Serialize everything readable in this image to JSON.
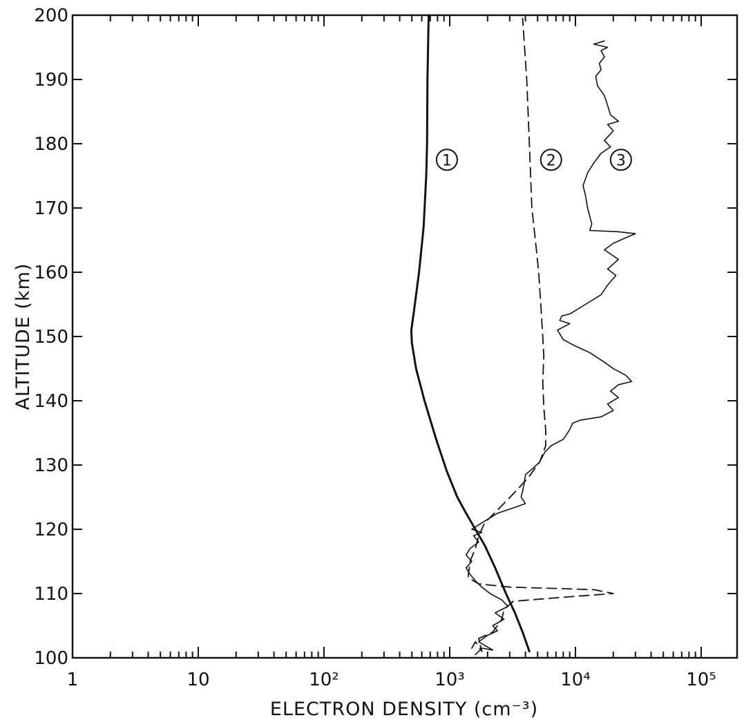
{
  "chart_data": {
    "type": "line",
    "xlabel": "ELECTRON DENSITY (cm⁻³)",
    "ylabel": "ALTITUDE (km)",
    "x_scale": "log",
    "xlim": [
      1,
      180000
    ],
    "ylim": [
      100,
      200
    ],
    "x_ticks": [
      {
        "value": 1,
        "label": "1"
      },
      {
        "value": 10,
        "label": "10"
      },
      {
        "value": 100,
        "label": "10²"
      },
      {
        "value": 1000,
        "label": "10³"
      },
      {
        "value": 10000,
        "label": "10⁴"
      },
      {
        "value": 100000,
        "label": "10⁵"
      }
    ],
    "y_ticks": [
      100,
      110,
      120,
      130,
      140,
      150,
      160,
      170,
      180,
      190,
      200
    ],
    "grid": false,
    "legend": "none",
    "series": [
      {
        "name": "1",
        "style": "solid-thick",
        "color": "#111111",
        "points": [
          [
            4300,
            101
          ],
          [
            3800,
            104
          ],
          [
            3300,
            107
          ],
          [
            2800,
            110
          ],
          [
            2300,
            114
          ],
          [
            1900,
            117.5
          ],
          [
            1600,
            120
          ],
          [
            1350,
            122.5
          ],
          [
            1150,
            125
          ],
          [
            950,
            129
          ],
          [
            780,
            134
          ],
          [
            630,
            140
          ],
          [
            540,
            145
          ],
          [
            500,
            149
          ],
          [
            495,
            151
          ],
          [
            520,
            154
          ],
          [
            570,
            160
          ],
          [
            620,
            167
          ],
          [
            650,
            175
          ],
          [
            660,
            180
          ],
          [
            665,
            190
          ],
          [
            680,
            200
          ]
        ]
      },
      {
        "name": "2",
        "style": "dashed",
        "color": "#111111",
        "points": [
          [
            1500,
            101.5
          ],
          [
            1600,
            102.5
          ],
          [
            1800,
            101
          ],
          [
            1700,
            103
          ],
          [
            2200,
            104
          ],
          [
            2600,
            106
          ],
          [
            2700,
            107.5
          ],
          [
            3200,
            108.8
          ],
          [
            9000,
            109.5
          ],
          [
            20000,
            110
          ],
          [
            14000,
            110.6
          ],
          [
            7000,
            110.8
          ],
          [
            3000,
            111
          ],
          [
            1700,
            111.5
          ],
          [
            1400,
            112.5
          ],
          [
            1450,
            115
          ],
          [
            1600,
            117
          ],
          [
            1700,
            119
          ],
          [
            1900,
            121
          ],
          [
            2400,
            123
          ],
          [
            3200,
            125.5
          ],
          [
            4200,
            128
          ],
          [
            5200,
            130.5
          ],
          [
            5800,
            133
          ],
          [
            5800,
            135.5
          ],
          [
            5600,
            139
          ],
          [
            5500,
            143
          ],
          [
            5600,
            147
          ],
          [
            5500,
            150
          ],
          [
            5300,
            155
          ],
          [
            5100,
            160
          ],
          [
            4800,
            165
          ],
          [
            4500,
            170
          ],
          [
            4400,
            175
          ],
          [
            4300,
            180
          ],
          [
            4100,
            190
          ],
          [
            3800,
            199.5
          ]
        ]
      },
      {
        "name": "3",
        "style": "solid-thin",
        "color": "#111111",
        "points": [
          [
            1600,
            100.5
          ],
          [
            1800,
            101.5
          ],
          [
            2200,
            101.2
          ],
          [
            1700,
            102.5
          ],
          [
            2000,
            103.5
          ],
          [
            2400,
            104.2
          ],
          [
            2200,
            105
          ],
          [
            2700,
            106
          ],
          [
            2300,
            107
          ],
          [
            2900,
            108
          ],
          [
            2600,
            109
          ],
          [
            2100,
            110
          ],
          [
            1800,
            111
          ],
          [
            1600,
            112
          ],
          [
            1450,
            113
          ],
          [
            1350,
            114
          ],
          [
            1500,
            115
          ],
          [
            1350,
            116
          ],
          [
            1450,
            117
          ],
          [
            1700,
            118
          ],
          [
            1550,
            119
          ],
          [
            1800,
            119.5
          ],
          [
            1500,
            120
          ],
          [
            1800,
            121
          ],
          [
            2400,
            122.5
          ],
          [
            3400,
            123.5
          ],
          [
            4000,
            124
          ],
          [
            3700,
            125
          ],
          [
            3900,
            127
          ],
          [
            4000,
            128.5
          ],
          [
            4600,
            129.5
          ],
          [
            5200,
            130.5
          ],
          [
            5700,
            132
          ],
          [
            6400,
            133
          ],
          [
            8000,
            134
          ],
          [
            9000,
            135.5
          ],
          [
            9500,
            136.5
          ],
          [
            11000,
            137
          ],
          [
            16000,
            137.5
          ],
          [
            20000,
            138.5
          ],
          [
            18000,
            139.5
          ],
          [
            22000,
            140.5
          ],
          [
            19000,
            141.5
          ],
          [
            22000,
            142.5
          ],
          [
            28000,
            143
          ],
          [
            25000,
            144
          ],
          [
            20000,
            145
          ],
          [
            17000,
            146
          ],
          [
            13000,
            147.5
          ],
          [
            10000,
            148.5
          ],
          [
            8000,
            149.5
          ],
          [
            7200,
            151
          ],
          [
            9000,
            152
          ],
          [
            7500,
            152.5
          ],
          [
            7800,
            153.2
          ],
          [
            9000,
            153.5
          ],
          [
            12000,
            155
          ],
          [
            16000,
            156.5
          ],
          [
            18000,
            158
          ],
          [
            21000,
            159.5
          ],
          [
            18000,
            160.5
          ],
          [
            22000,
            162
          ],
          [
            17000,
            163.5
          ],
          [
            20000,
            164.5
          ],
          [
            26000,
            165.5
          ],
          [
            30000,
            166
          ],
          [
            22000,
            166.3
          ],
          [
            13000,
            166.5
          ],
          [
            13500,
            167.5
          ],
          [
            12500,
            170
          ],
          [
            12000,
            172
          ],
          [
            11500,
            173.5
          ],
          [
            12000,
            174.5
          ],
          [
            12500,
            175.5
          ],
          [
            14000,
            177
          ],
          [
            16000,
            178.5
          ],
          [
            19000,
            179.5
          ],
          [
            17000,
            180.5
          ],
          [
            20000,
            182
          ],
          [
            18000,
            183
          ],
          [
            22000,
            183.5
          ],
          [
            19000,
            184.5
          ],
          [
            18000,
            186
          ],
          [
            17000,
            187.5
          ],
          [
            15000,
            189
          ],
          [
            14500,
            190.5
          ],
          [
            16000,
            191.5
          ],
          [
            15500,
            192.5
          ],
          [
            17000,
            193.5
          ],
          [
            16000,
            194.5
          ],
          [
            18000,
            195
          ],
          [
            14000,
            195.5
          ],
          [
            17000,
            196
          ]
        ]
      }
    ],
    "annotations": [
      {
        "text": "1",
        "x": 950,
        "y": 177.5
      },
      {
        "text": "2",
        "x": 6400,
        "y": 177.5
      },
      {
        "text": "3",
        "x": 23000,
        "y": 177.5
      }
    ]
  }
}
